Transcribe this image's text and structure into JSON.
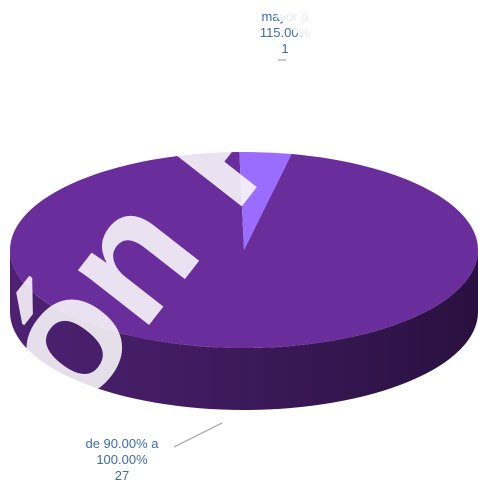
{
  "chart_data": {
    "type": "pie",
    "style": "3d",
    "title": "",
    "categories": [
      "de 90.00% a 100.00%",
      "mayor a 115.00%"
    ],
    "values": [
      27,
      1
    ],
    "colors": [
      "#6a2e9c",
      "#9b6dff"
    ],
    "labels": [
      {
        "line1": "de 90.00% a",
        "line2": "100.00%",
        "value": "27"
      },
      {
        "line1": "mayor a",
        "line2": "115.00%",
        "value": "1"
      }
    ],
    "legend": "none"
  },
  "watermark": {
    "text": "ión Pú"
  }
}
